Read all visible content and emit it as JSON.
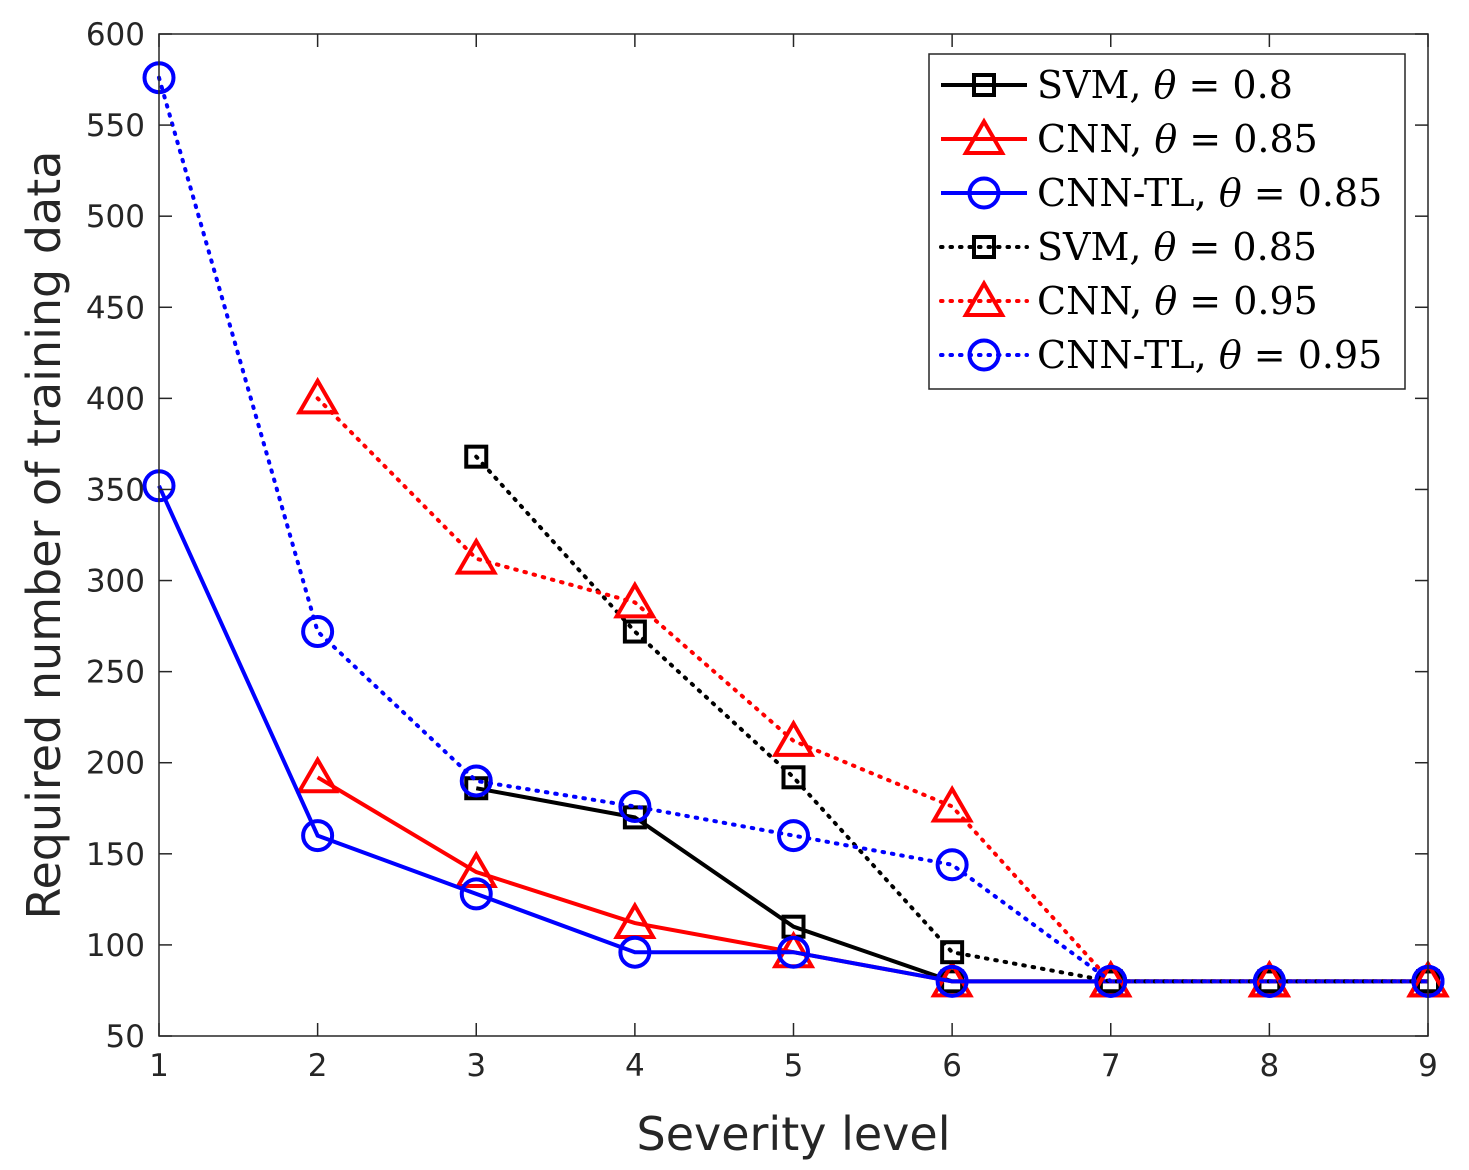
{
  "chart_data": {
    "type": "line",
    "title": "",
    "xlabel": "Severity level",
    "ylabel": "Required number of training data",
    "xlim": [
      1,
      9
    ],
    "ylim": [
      50,
      600
    ],
    "xticks": [
      1,
      2,
      3,
      4,
      5,
      6,
      7,
      8,
      9
    ],
    "yticks": [
      50,
      100,
      150,
      200,
      250,
      300,
      350,
      400,
      450,
      500,
      550,
      600
    ],
    "grid": false,
    "legend_position": "top-right",
    "series": [
      {
        "name": "SVM, θ = 0.8",
        "legend": {
          "model": "SVM, ",
          "theta": "θ",
          "rest": " = 0.8"
        },
        "color": "#000000",
        "line": "solid",
        "marker": "square",
        "x": [
          3,
          4,
          5,
          6,
          7,
          8,
          9
        ],
        "y": [
          186,
          170,
          110,
          80,
          80,
          80,
          80
        ]
      },
      {
        "name": "CNN, θ = 0.85",
        "legend": {
          "model": "CNN, ",
          "theta": "θ",
          "rest": " = 0.85"
        },
        "color": "#ff0000",
        "line": "solid",
        "marker": "triangle",
        "x": [
          2,
          3,
          4,
          5,
          6,
          7,
          8,
          9
        ],
        "y": [
          192,
          140,
          112,
          96,
          80,
          80,
          80,
          80
        ]
      },
      {
        "name": "CNN-TL, θ = 0.85",
        "legend": {
          "model": "CNN-TL, ",
          "theta": "θ",
          "rest": " = 0.85"
        },
        "color": "#0000ff",
        "line": "solid",
        "marker": "circle",
        "x": [
          1,
          2,
          3,
          4,
          5,
          6,
          7,
          8,
          9
        ],
        "y": [
          352,
          160,
          128,
          96,
          96,
          80,
          80,
          80,
          80
        ]
      },
      {
        "name": "SVM, θ = 0.85",
        "legend": {
          "model": "SVM, ",
          "theta": "θ",
          "rest": " = 0.85"
        },
        "color": "#000000",
        "line": "dotted",
        "marker": "square",
        "x": [
          3,
          4,
          5,
          6,
          7,
          8,
          9
        ],
        "y": [
          368,
          272,
          192,
          96,
          80,
          80,
          80
        ]
      },
      {
        "name": "CNN, θ = 0.95",
        "legend": {
          "model": "CNN, ",
          "theta": "θ",
          "rest": " = 0.95"
        },
        "color": "#ff0000",
        "line": "dotted",
        "marker": "triangle",
        "x": [
          2,
          3,
          4,
          5,
          6,
          7,
          8,
          9
        ],
        "y": [
          400,
          312,
          288,
          212,
          176,
          80,
          80,
          80
        ]
      },
      {
        "name": "CNN-TL, θ = 0.95",
        "legend": {
          "model": "CNN-TL, ",
          "theta": "θ",
          "rest": " = 0.95"
        },
        "color": "#0000ff",
        "line": "dotted",
        "marker": "circle",
        "x": [
          1,
          2,
          3,
          4,
          5,
          6,
          7,
          8,
          9
        ],
        "y": [
          576,
          272,
          190,
          176,
          160,
          144,
          80,
          80,
          80
        ]
      }
    ]
  }
}
